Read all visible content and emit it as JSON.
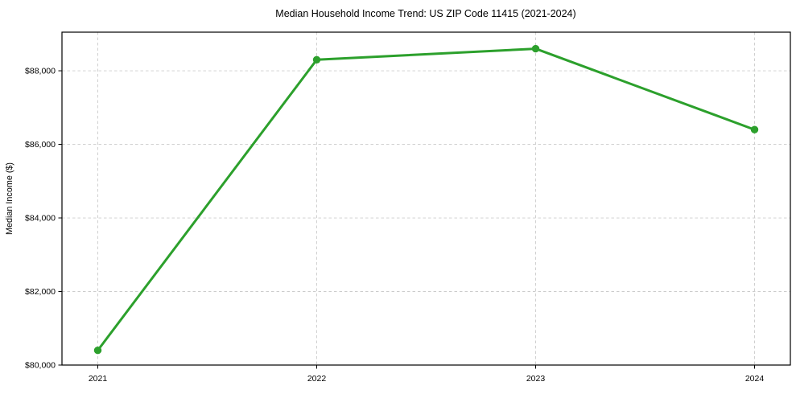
{
  "chart_data": {
    "type": "line",
    "title": "Median Household Income Trend: US ZIP Code 11415 (2021-2024)",
    "xlabel": "",
    "ylabel": "Median Income ($)",
    "x_labels": [
      "2021",
      "2022",
      "2023",
      "2024"
    ],
    "x": [
      2021,
      2022,
      2023,
      2024
    ],
    "values": [
      80400,
      88300,
      88600,
      86400
    ],
    "ylim": [
      80000,
      89050
    ],
    "yticks": [
      80000,
      82000,
      84000,
      86000,
      88000
    ],
    "ytick_labels": [
      "$80,000",
      "$82,000",
      "$84,000",
      "$86,000",
      "$88,000"
    ],
    "grid": true,
    "grid_style": "dashed",
    "legend": false,
    "line_color": "#2ca02c",
    "marker": "circle",
    "background_color": "#ffffff",
    "grid_color": "#cccccc",
    "spine_color": "#000000",
    "text_color": "#000000"
  }
}
